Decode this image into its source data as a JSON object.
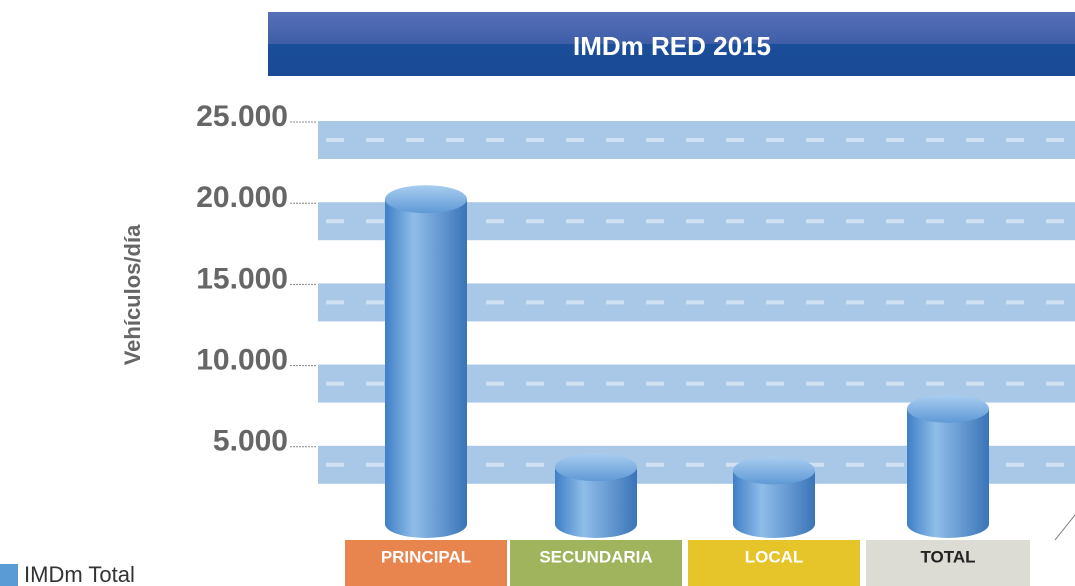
{
  "chart_data": {
    "type": "bar",
    "title": "IMDm RED 2015",
    "y_label": "Vehículos/día",
    "categories": [
      "PRINCIPAL",
      "SECUNDARIA",
      "LOCAL",
      "TOTAL"
    ],
    "category_colors": [
      "#e8844d",
      "#9fb45c",
      "#e6c52a",
      "#dcdcd4"
    ],
    "series": [
      {
        "name": "IMDm Total",
        "color": "#5b9bd5",
        "values": [
          20000,
          3500,
          3300,
          7100
        ]
      }
    ],
    "ylim": [
      0,
      25000
    ],
    "yticks": [
      {
        "value": 5000,
        "label": "5.000"
      },
      {
        "value": 10000,
        "label": "10.000"
      },
      {
        "value": 15000,
        "label": "15.000"
      },
      {
        "value": 20000,
        "label": "20.000"
      },
      {
        "value": 25000,
        "label": "25.000"
      }
    ],
    "grid": true
  }
}
